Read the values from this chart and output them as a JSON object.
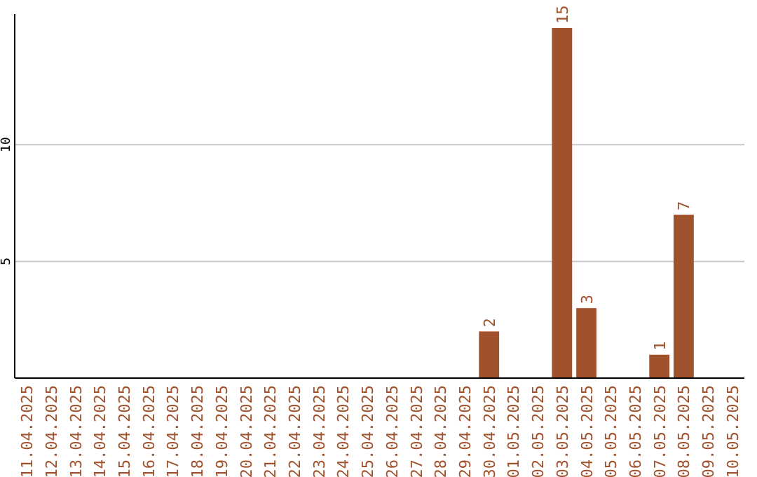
{
  "chart_data": {
    "type": "bar",
    "categories": [
      "11.04.2025",
      "12.04.2025",
      "13.04.2025",
      "14.04.2025",
      "15.04.2025",
      "16.04.2025",
      "17.04.2025",
      "18.04.2025",
      "19.04.2025",
      "20.04.2025",
      "21.04.2025",
      "22.04.2025",
      "23.04.2025",
      "24.04.2025",
      "25.04.2025",
      "26.04.2025",
      "27.04.2025",
      "28.04.2025",
      "29.04.2025",
      "30.04.2025",
      "01.05.2025",
      "02.05.2025",
      "03.05.2025",
      "04.05.2025",
      "05.05.2025",
      "06.05.2025",
      "07.05.2025",
      "08.05.2025",
      "09.05.2025",
      "10.05.2025"
    ],
    "values": [
      0,
      0,
      0,
      0,
      0,
      0,
      0,
      0,
      0,
      0,
      0,
      0,
      0,
      0,
      0,
      0,
      0,
      0,
      0,
      2,
      0,
      0,
      15,
      3,
      0,
      0,
      1,
      7,
      0,
      0
    ],
    "value_labels": [
      null,
      null,
      null,
      null,
      null,
      null,
      null,
      null,
      null,
      null,
      null,
      null,
      null,
      null,
      null,
      null,
      null,
      null,
      null,
      "2",
      null,
      null,
      "15",
      "3",
      null,
      null,
      "1",
      "7",
      null,
      null
    ],
    "color": "#a0522d",
    "ylim": [
      0,
      15.6
    ],
    "yticks": [
      5,
      10
    ],
    "grid": "y"
  }
}
